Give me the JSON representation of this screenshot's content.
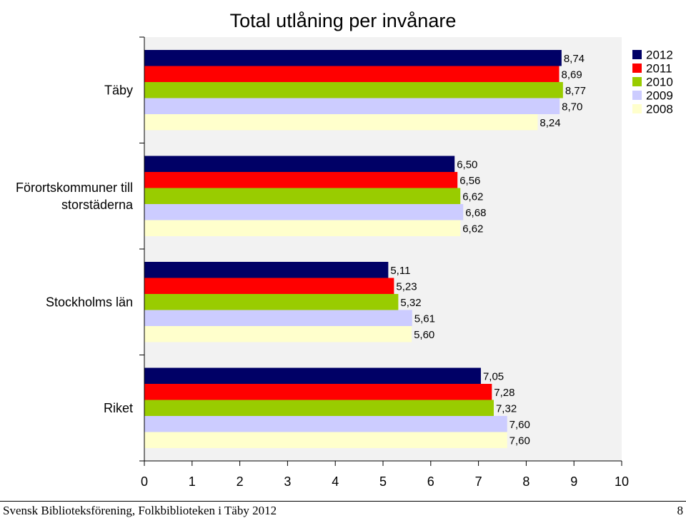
{
  "chart_data": {
    "type": "bar",
    "orientation": "horizontal",
    "title": "Total utlåning per invånare",
    "categories": [
      "Täby",
      "Förortskommuner till storstäderna",
      "Stockholms län",
      "Riket"
    ],
    "category_label_lines": [
      [
        "Täby"
      ],
      [
        "Förortskommuner till",
        "storstäderna"
      ],
      [
        "Stockholms län"
      ],
      [
        "Riket"
      ]
    ],
    "series": [
      {
        "name": "2012",
        "color": "#000066",
        "values": [
          8.74,
          6.5,
          5.11,
          7.05
        ],
        "labels": [
          "8,74",
          "6,50",
          "5,11",
          "7,05"
        ]
      },
      {
        "name": "2011",
        "color": "#FF0000",
        "values": [
          8.69,
          6.56,
          5.23,
          7.28
        ],
        "labels": [
          "8,69",
          "6,56",
          "5,23",
          "7,28"
        ]
      },
      {
        "name": "2010",
        "color": "#99CC00",
        "values": [
          8.77,
          6.62,
          5.32,
          7.32
        ],
        "labels": [
          "8,77",
          "6,62",
          "5,32",
          "7,32"
        ]
      },
      {
        "name": "2009",
        "color": "#CCCCFF",
        "values": [
          8.7,
          6.68,
          5.61,
          7.6
        ],
        "labels": [
          "8,70",
          "6,68",
          "5,61",
          "7,60"
        ]
      },
      {
        "name": "2008",
        "color": "#FFFFCC",
        "values": [
          8.24,
          6.62,
          5.6,
          7.6
        ],
        "labels": [
          "8,24",
          "6,62",
          "5,60",
          "7,60"
        ]
      }
    ],
    "xlim": [
      0,
      10
    ],
    "xticks": [
      "0",
      "1",
      "2",
      "3",
      "4",
      "5",
      "6",
      "7",
      "8",
      "9",
      "10"
    ],
    "grid": false,
    "legend_position": "top-right",
    "plot_background": "#F2F2F2"
  },
  "footer": {
    "left": "Svensk Biblioteksförening, Folkbiblioteken i Täby 2012",
    "right": "8"
  }
}
